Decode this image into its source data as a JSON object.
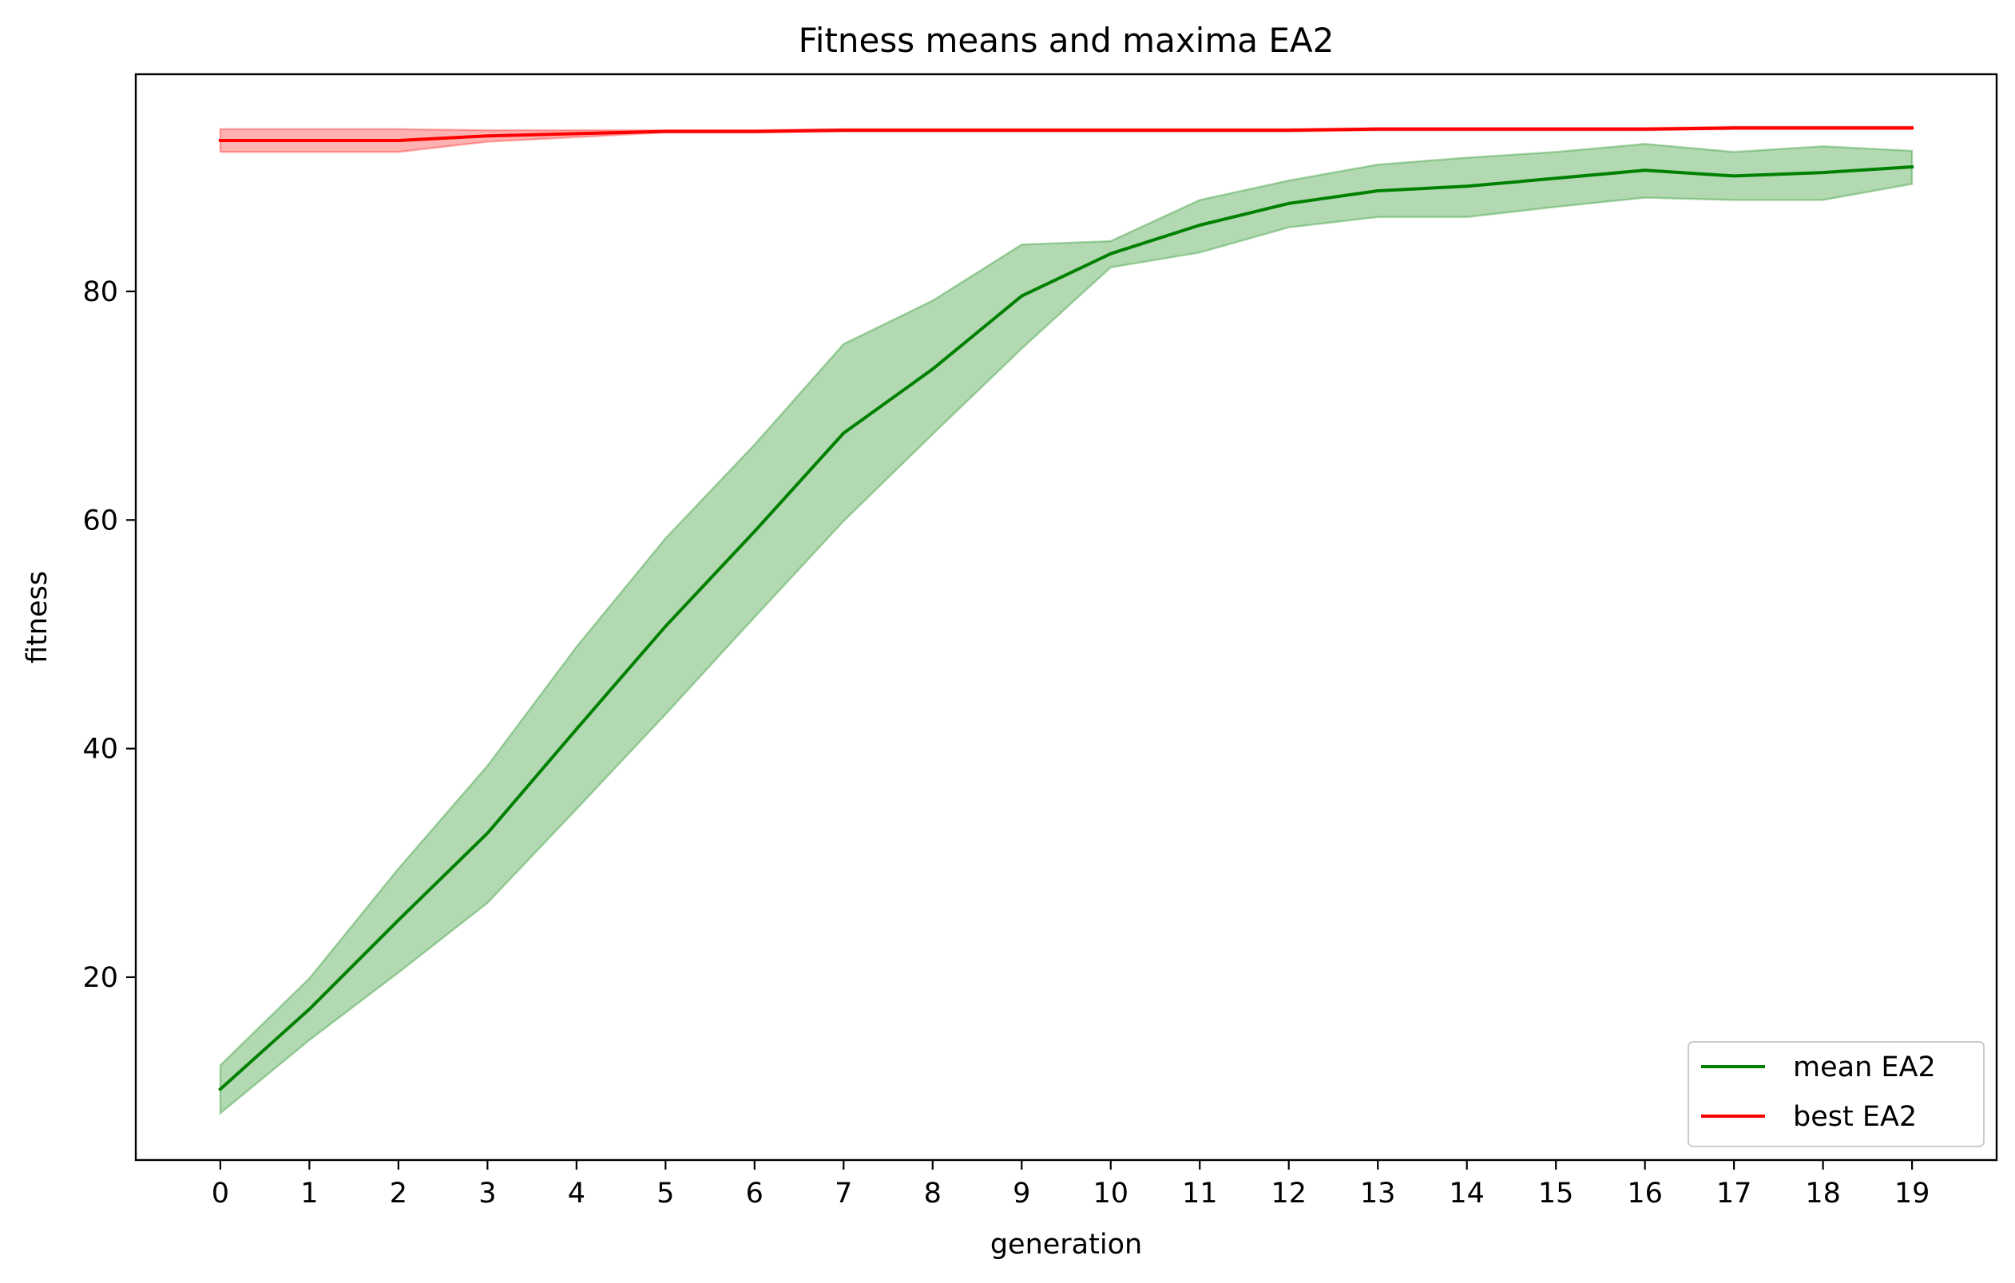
{
  "chart_data": {
    "type": "line",
    "title": "Fitness means and maxima EA2",
    "xlabel": "generation",
    "ylabel": "fitness",
    "x": [
      0,
      1,
      2,
      3,
      4,
      5,
      6,
      7,
      8,
      9,
      10,
      11,
      12,
      13,
      14,
      15,
      16,
      17,
      18,
      19
    ],
    "xlim": [
      -0.95,
      19.95
    ],
    "ylim": [
      4.0,
      99.0
    ],
    "y_ticks": [
      20,
      40,
      60,
      80
    ],
    "grid": false,
    "legend_position": "lower right",
    "series": [
      {
        "name": "mean EA2",
        "color": "#008000",
        "band_color": "#008000",
        "values": [
          10.2,
          17.2,
          25.0,
          32.6,
          41.7,
          50.7,
          59.0,
          67.6,
          73.2,
          79.6,
          83.3,
          85.8,
          87.7,
          88.8,
          89.2,
          89.9,
          90.6,
          90.1,
          90.4,
          90.9
        ],
        "band_lower": [
          8.1,
          14.5,
          20.4,
          26.5,
          34.7,
          43.0,
          51.5,
          59.9,
          67.5,
          75.0,
          82.1,
          83.4,
          85.6,
          86.5,
          86.5,
          87.4,
          88.2,
          88.0,
          88.0,
          89.4
        ],
        "band_upper": [
          12.3,
          19.9,
          29.5,
          38.5,
          48.9,
          58.4,
          66.6,
          75.4,
          79.2,
          84.1,
          84.4,
          88.0,
          89.7,
          91.1,
          91.7,
          92.2,
          92.9,
          92.2,
          92.7,
          92.3
        ]
      },
      {
        "name": "best EA2",
        "color": "#ff0000",
        "band_color": "#ff0000",
        "values": [
          93.2,
          93.2,
          93.2,
          93.6,
          93.8,
          94.0,
          94.0,
          94.1,
          94.1,
          94.1,
          94.1,
          94.1,
          94.1,
          94.2,
          94.2,
          94.2,
          94.2,
          94.3,
          94.3,
          94.3
        ],
        "band_lower": [
          92.2,
          92.2,
          92.2,
          93.1,
          93.5,
          93.9,
          93.9,
          94.0,
          94.0,
          94.0,
          94.0,
          94.0,
          94.0,
          94.1,
          94.1,
          94.1,
          94.1,
          94.2,
          94.2,
          94.2
        ],
        "band_upper": [
          94.2,
          94.2,
          94.2,
          94.1,
          94.1,
          94.1,
          94.1,
          94.2,
          94.2,
          94.2,
          94.2,
          94.2,
          94.2,
          94.3,
          94.3,
          94.3,
          94.3,
          94.4,
          94.4,
          94.4
        ]
      }
    ]
  }
}
